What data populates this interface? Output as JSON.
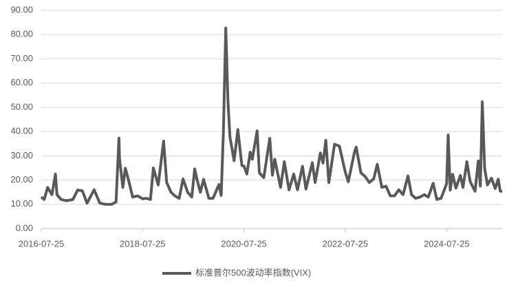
{
  "chart_data": {
    "type": "line",
    "x": [
      "2016-07-25",
      "2016-08-15",
      "2016-09-09",
      "2016-10-10",
      "2016-11-04",
      "2016-11-15",
      "2016-12-15",
      "2017-01-20",
      "2017-03-10",
      "2017-04-13",
      "2017-05-17",
      "2017-06-20",
      "2017-08-10",
      "2017-09-20",
      "2017-11-01",
      "2017-12-15",
      "2018-01-15",
      "2018-02-05",
      "2018-02-09",
      "2018-03-05",
      "2018-03-23",
      "2018-04-15",
      "2018-05-15",
      "2018-06-20",
      "2018-07-25",
      "2018-08-20",
      "2018-09-20",
      "2018-10-11",
      "2018-11-15",
      "2018-12-24",
      "2019-01-15",
      "2019-02-15",
      "2019-03-15",
      "2019-04-15",
      "2019-05-13",
      "2019-06-15",
      "2019-07-15",
      "2019-08-05",
      "2019-08-23",
      "2019-09-15",
      "2019-10-08",
      "2019-11-15",
      "2019-12-15",
      "2020-01-27",
      "2020-02-12",
      "2020-02-28",
      "2020-03-16",
      "2020-03-31",
      "2020-04-15",
      "2020-05-15",
      "2020-06-11",
      "2020-07-10",
      "2020-07-25",
      "2020-08-15",
      "2020-09-08",
      "2020-09-23",
      "2020-10-28",
      "2020-11-13",
      "2020-12-15",
      "2021-01-27",
      "2021-02-15",
      "2021-03-04",
      "2021-04-15",
      "2021-05-12",
      "2021-06-15",
      "2021-07-19",
      "2021-08-15",
      "2021-09-20",
      "2021-10-15",
      "2021-11-30",
      "2021-12-20",
      "2022-01-27",
      "2022-02-15",
      "2022-03-07",
      "2022-03-29",
      "2022-05-09",
      "2022-06-13",
      "2022-07-25",
      "2022-08-16",
      "2022-09-30",
      "2022-10-12",
      "2022-11-15",
      "2022-12-15",
      "2023-01-15",
      "2023-02-15",
      "2023-03-13",
      "2023-04-15",
      "2023-05-15",
      "2023-06-15",
      "2023-07-15",
      "2023-08-15",
      "2023-09-15",
      "2023-10-20",
      "2023-11-15",
      "2023-12-15",
      "2024-01-15",
      "2024-02-15",
      "2024-03-15",
      "2024-04-19",
      "2024-05-15",
      "2024-06-15",
      "2024-07-25",
      "2024-08-05",
      "2024-08-20",
      "2024-09-06",
      "2024-09-30",
      "2024-11-01",
      "2024-11-20",
      "2024-12-18",
      "2025-01-10",
      "2025-02-15",
      "2025-03-10",
      "2025-03-25",
      "2025-04-08",
      "2025-04-25",
      "2025-05-15",
      "2025-06-13",
      "2025-07-10",
      "2025-08-01",
      "2025-08-15",
      "2025-08-29"
    ],
    "series": [
      {
        "name": "标准普尔500波动率指数(VIX)",
        "color": "#595959",
        "values": [
          13,
          12,
          17,
          14,
          22.5,
          14,
          12,
          11.5,
          12,
          15.9,
          15.6,
          10.5,
          16,
          10.5,
          10,
          10,
          11,
          37.3,
          29,
          17,
          24.9,
          20,
          13,
          13.5,
          12.3,
          12.5,
          12,
          25,
          18,
          36.1,
          19,
          15,
          13.5,
          12.5,
          20.5,
          15,
          13,
          24.6,
          19.9,
          15,
          20.3,
          12.5,
          12.5,
          18.2,
          13.7,
          40.1,
          82.7,
          53.5,
          37.8,
          28,
          40.8,
          26,
          25.8,
          22.5,
          31.5,
          28.6,
          40.3,
          23,
          21,
          37.2,
          22,
          28.6,
          17,
          27.6,
          16,
          22.5,
          16,
          25.7,
          16.3,
          27.2,
          19,
          31.2,
          27,
          36.4,
          19,
          34.8,
          34,
          23.4,
          19.3,
          31.6,
          33.6,
          23,
          21.5,
          19,
          20.5,
          26.5,
          17,
          17.5,
          13.5,
          13.5,
          16,
          14,
          21.7,
          14,
          12.5,
          13,
          14,
          13,
          18.7,
          12,
          12.5,
          18.5,
          38.6,
          15.9,
          22.4,
          16.7,
          21.9,
          17,
          27.6,
          19.5,
          15.4,
          27.9,
          17.5,
          52.3,
          24.8,
          18,
          20.8,
          16.5,
          20.4,
          15.5,
          15.2
        ]
      }
    ],
    "xlim": [
      "2016-07-25",
      "2025-08-29"
    ],
    "xticks": [
      "2016-07-25",
      "2018-07-25",
      "2020-07-25",
      "2022-07-25",
      "2024-07-25"
    ],
    "ylim": [
      0,
      90
    ],
    "yticks": [
      {
        "value": 0,
        "label": "0.00"
      },
      {
        "value": 10,
        "label": "10.00"
      },
      {
        "value": 20,
        "label": "20.00"
      },
      {
        "value": 30,
        "label": "30.00"
      },
      {
        "value": 40,
        "label": "40.00"
      },
      {
        "value": 50,
        "label": "50.00"
      },
      {
        "value": 60,
        "label": "60.00"
      },
      {
        "value": 70,
        "label": "70.00"
      },
      {
        "value": 80,
        "label": "80.00"
      },
      {
        "value": 90,
        "label": "90.00"
      }
    ],
    "grid": true,
    "legend": "bottom"
  }
}
